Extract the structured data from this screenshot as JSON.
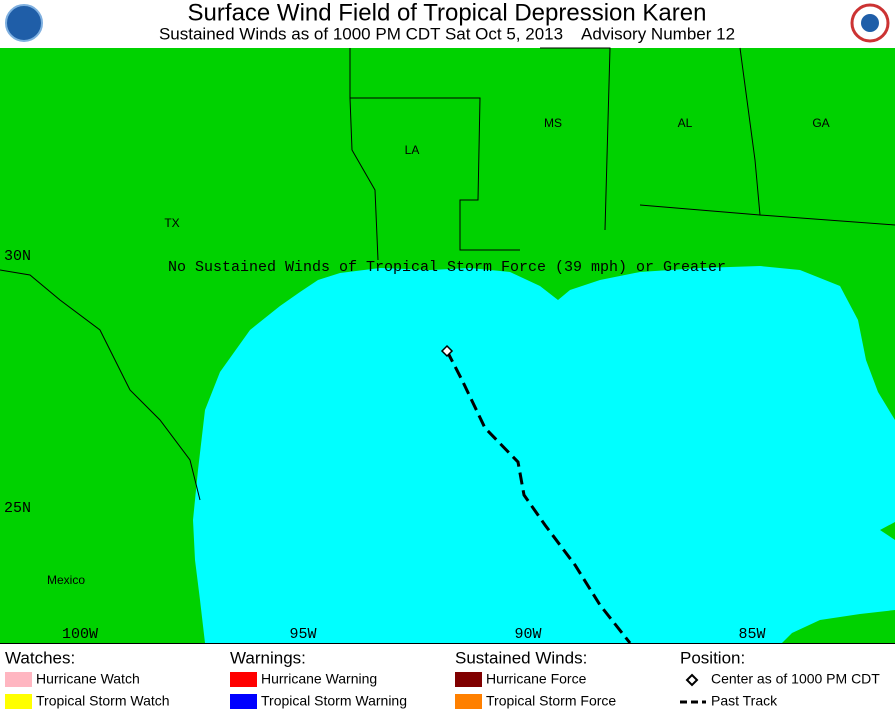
{
  "header": {
    "title": "Surface Wind Field of Tropical Depression Karen",
    "subtitle": "Sustained Winds as of 1000 PM CDT Sat Oct 5, 2013    Advisory Number 12"
  },
  "map": {
    "states": [
      "TX",
      "LA",
      "MS",
      "AL",
      "GA",
      "Mexico"
    ],
    "latitudes": [
      "30N",
      "25N"
    ],
    "longitudes": [
      "100W",
      "95W",
      "90W",
      "85W"
    ],
    "message": "No Sustained Winds of Tropical Storm Force (39 mph) or Greater"
  },
  "legend": {
    "watches": {
      "title": "Watches:",
      "items": [
        "Hurricane Watch",
        "Tropical Storm Watch"
      ]
    },
    "warnings": {
      "title": "Warnings:",
      "items": [
        "Hurricane Warning",
        "Tropical Storm Warning"
      ]
    },
    "winds": {
      "title": "Sustained Winds:",
      "items": [
        "Hurricane Force",
        "Tropical Storm Force"
      ]
    },
    "position": {
      "title": "Position:",
      "items": [
        "Center as of 1000 PM CDT",
        "Past Track"
      ]
    }
  }
}
